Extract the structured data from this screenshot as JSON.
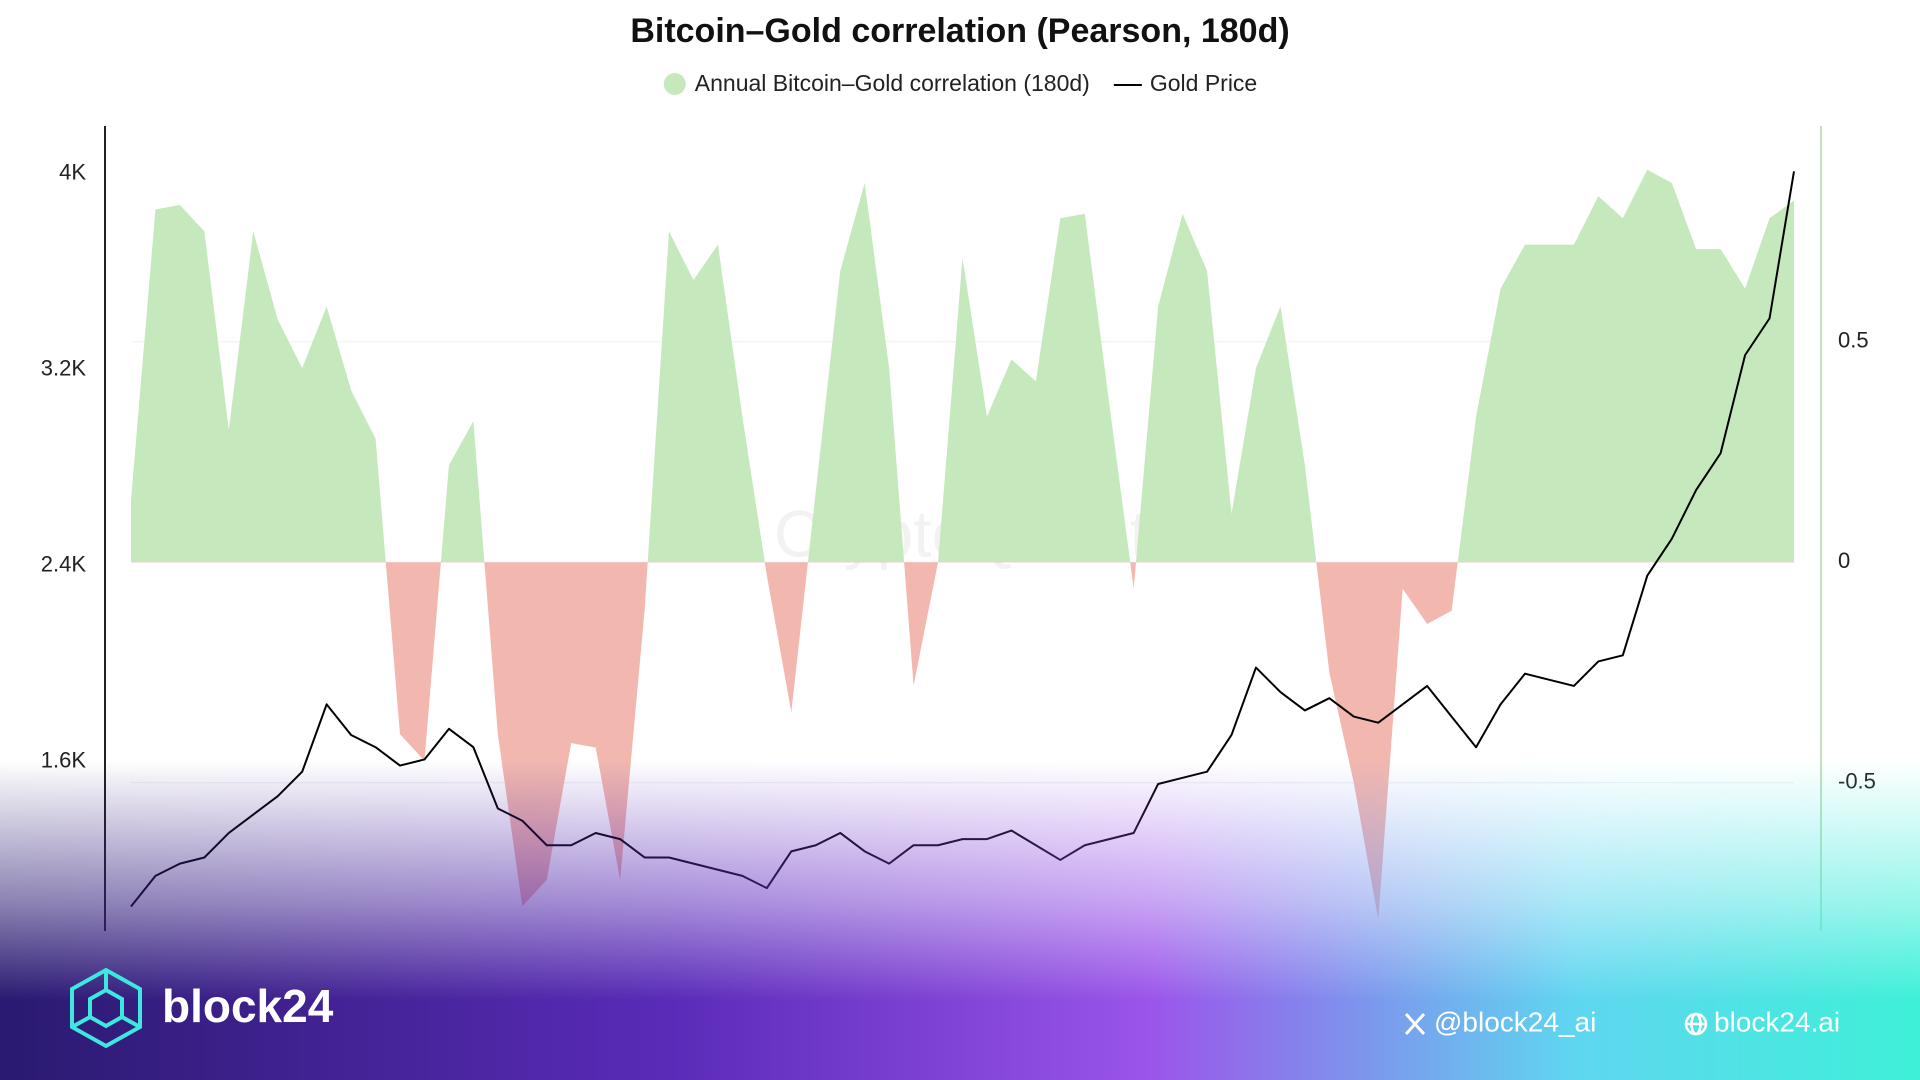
{
  "chart_data": {
    "type": "combo",
    "title": "Bitcoin–Gold correlation (Pearson, 180d)",
    "watermark": "CryptoQuant",
    "ylim": [
      910,
      4195
    ],
    "yticks": [
      {
        "value": 1600,
        "label": "1.6K"
      },
      {
        "value": 2400,
        "label": "2.4K"
      },
      {
        "value": 3200,
        "label": "3.2K"
      },
      {
        "value": 4000,
        "label": "4K"
      }
    ],
    "y2lim": [
      -0.836,
      0.989
    ],
    "y2ticks": [
      -0.5,
      0,
      0.5
    ],
    "grid": true,
    "legend": "top",
    "series": [
      {
        "name": "Annual Bitcoin–Gold correlation (180d)",
        "type": "area",
        "axis": "y2",
        "color": "#c5e8bc",
        "negative_color": "#f2b8b0",
        "values": [
          0.14,
          0.8,
          0.81,
          0.75,
          0.3,
          0.75,
          0.55,
          0.44,
          0.58,
          0.39,
          0.28,
          -0.39,
          -0.45,
          0.22,
          0.32,
          -0.39,
          -0.78,
          -0.72,
          -0.41,
          -0.42,
          -0.72,
          -0.11,
          0.75,
          0.64,
          0.72,
          0.33,
          -0.03,
          -0.34,
          0.16,
          0.66,
          0.86,
          0.44,
          -0.28,
          0.0,
          0.69,
          0.33,
          0.46,
          0.41,
          0.78,
          0.79,
          0.36,
          -0.06,
          0.58,
          0.79,
          0.66,
          0.11,
          0.44,
          0.58,
          0.22,
          -0.25,
          -0.5,
          -0.81,
          -0.06,
          -0.14,
          -0.11,
          0.33,
          0.62,
          0.72,
          0.72,
          0.72,
          0.83,
          0.78,
          0.89,
          0.86,
          0.71,
          0.71,
          0.62,
          0.78,
          0.82
        ]
      },
      {
        "name": "Gold Price",
        "type": "line",
        "color": "#000000",
        "values": [
          1010,
          1135,
          1185,
          1210,
          1310,
          1385,
          1460,
          1560,
          1835,
          1710,
          1660,
          1585,
          1610,
          1735,
          1660,
          1410,
          1360,
          1260,
          1260,
          1310,
          1285,
          1210,
          1210,
          1185,
          1160,
          1135,
          1085,
          1235,
          1260,
          1310,
          1235,
          1185,
          1260,
          1260,
          1285,
          1285,
          1320,
          1260,
          1200,
          1260,
          1285,
          1310,
          1510,
          1535,
          1560,
          1710,
          1985,
          1885,
          1810,
          1860,
          1785,
          1760,
          1835,
          1910,
          1785,
          1660,
          1835,
          1960,
          1935,
          1910,
          2010,
          2035,
          2360,
          2510,
          2710,
          2860,
          3260,
          3410,
          4010
        ]
      }
    ]
  },
  "branding": {
    "logo": "block24",
    "twitter": "@block24_ai",
    "website": "block24.ai"
  }
}
